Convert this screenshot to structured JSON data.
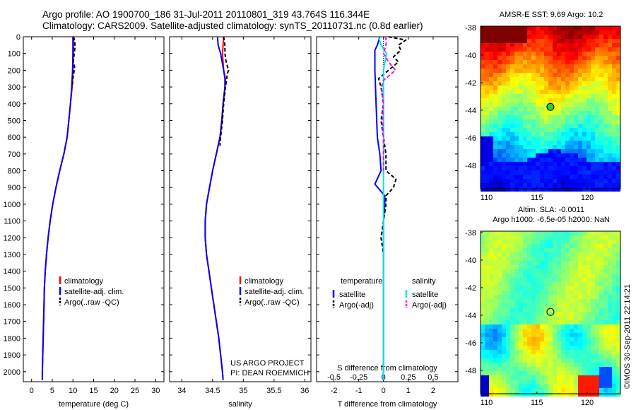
{
  "header": {
    "line1": "Argo profile: AO 1900700_186 31-Jul-2011 20110801_319 43.764S 116.344E",
    "line2": "Climatology: CARS2009. Satellite-adjusted climatology: synTS_20110731.nc (0.8d earlier)"
  },
  "credit": "©IMOS 30-Sep-2011 22:14:21",
  "project_note": {
    "line1": "US ARGO PROJECT",
    "line2": "PI: DEAN ROEMMICH"
  },
  "colors": {
    "climatology": "#ff0000",
    "satellite": "#0000ff",
    "argo": "#000000",
    "sal_satellite": "#00e0ff",
    "sal_argo": "#ff00ff"
  },
  "chart_data": [
    {
      "id": "temperature-profile",
      "type": "line",
      "xlabel": "temperature (deg C)",
      "ylabel": "",
      "xlim": [
        -2,
        32
      ],
      "ylim": [
        2060,
        0
      ],
      "xticks": [
        "0",
        "5",
        "10",
        "15",
        "20",
        "25",
        "30"
      ],
      "yticks": [
        "0",
        "100",
        "200",
        "300",
        "400",
        "500",
        "600",
        "700",
        "800",
        "900",
        "1000",
        "1100",
        "1200",
        "1300",
        "1400",
        "1500",
        "1600",
        "1700",
        "1800",
        "1900",
        "2000"
      ],
      "legend": [
        "climatology",
        "satellite-adj. clim.",
        "Argo(..raw -QC)"
      ],
      "series": [
        {
          "name": "climatology",
          "depth": [
            0,
            100,
            200,
            300,
            400,
            500,
            600,
            700,
            800,
            900,
            1000,
            1100,
            1200,
            1300,
            1400,
            1500,
            1600,
            1700,
            1800,
            1900,
            2000,
            2050
          ],
          "values": [
            10.2,
            10.1,
            10.0,
            9.8,
            9.4,
            9.0,
            8.6,
            7.8,
            6.8,
            5.9,
            5.1,
            4.5,
            4.0,
            3.6,
            3.3,
            3.1,
            3.0,
            2.9,
            2.8,
            2.7,
            2.6,
            2.6
          ]
        },
        {
          "name": "satellite-adj. clim.",
          "depth": [
            0,
            100,
            200,
            300,
            400,
            500,
            600,
            700,
            800,
            900,
            1000,
            1100,
            1200,
            1300,
            1400,
            1500,
            1600,
            1700,
            1800,
            1900,
            2000,
            2050
          ],
          "values": [
            10.0,
            10.0,
            9.9,
            9.7,
            9.4,
            9.0,
            8.6,
            7.8,
            6.8,
            5.9,
            5.1,
            4.5,
            4.0,
            3.6,
            3.3,
            3.1,
            3.0,
            2.9,
            2.8,
            2.7,
            2.6,
            2.6
          ]
        },
        {
          "name": "Argo(..raw -QC)",
          "depth": [
            0,
            20,
            60,
            100,
            150,
            180,
            200,
            250,
            300
          ],
          "values": [
            10.1,
            10.4,
            10.5,
            10.3,
            10.1,
            10.4,
            10.3,
            10.0,
            9.8
          ]
        }
      ]
    },
    {
      "id": "salinity-profile",
      "type": "line",
      "xlabel": "salinity",
      "xlim": [
        33.8,
        36.1
      ],
      "ylim": [
        2060,
        0
      ],
      "xticks": [
        "34",
        "34.5",
        "35",
        "35.5",
        "36"
      ],
      "legend": [
        "climatology",
        "satellite-adj. clim.",
        "Argo(..raw -QC)"
      ],
      "series": [
        {
          "name": "climatology",
          "depth": [
            0,
            100,
            200,
            250,
            300,
            400,
            500,
            600,
            700,
            800,
            900,
            1000,
            1100,
            1200,
            1300,
            1400,
            1500,
            1600,
            1700,
            1800,
            1900,
            2000,
            2050
          ],
          "values": [
            34.68,
            34.66,
            34.68,
            34.71,
            34.7,
            34.67,
            34.65,
            34.62,
            34.56,
            34.5,
            34.45,
            34.4,
            34.38,
            34.38,
            34.4,
            34.44,
            34.48,
            34.52,
            34.56,
            34.6,
            34.63,
            34.66,
            34.67
          ]
        },
        {
          "name": "satellite-adj. clim.",
          "depth": [
            0,
            50,
            100,
            200,
            250,
            300,
            400,
            500,
            600,
            700,
            800,
            900,
            1000,
            1100,
            1200,
            1300,
            1400,
            1500,
            1600,
            1700,
            1800,
            1900,
            2000,
            2050
          ],
          "values": [
            34.58,
            34.59,
            34.63,
            34.68,
            34.7,
            34.7,
            34.67,
            34.65,
            34.62,
            34.56,
            34.5,
            34.45,
            34.4,
            34.38,
            34.38,
            34.4,
            34.44,
            34.48,
            34.52,
            34.56,
            34.6,
            34.63,
            34.66,
            34.67
          ]
        },
        {
          "name": "Argo(..raw -QC)",
          "depth": [
            0,
            50,
            100,
            150,
            200,
            220,
            250,
            300,
            400,
            500,
            600,
            650
          ],
          "values": [
            34.68,
            34.7,
            34.7,
            34.72,
            34.76,
            34.74,
            34.73,
            34.71,
            34.68,
            34.66,
            34.63,
            34.62
          ]
        }
      ]
    },
    {
      "id": "difference-profile",
      "type": "line",
      "xlabel": "T difference from climatology",
      "xlabel2": "S difference from climatology",
      "xlim": [
        -2.7,
        3.0
      ],
      "ylim": [
        2060,
        0
      ],
      "xticks": [
        "-2",
        "-1",
        "0",
        "1",
        "2"
      ],
      "xticks2": [
        "-0.5",
        "-0.25",
        "0",
        "0.25",
        "0.5"
      ],
      "legend_groups": [
        "temperature",
        "salinity"
      ],
      "legend": [
        "satellite",
        "Argo(-adj)",
        "satellite",
        "Argo(-adj)"
      ],
      "series": [
        {
          "name": "temperature satellite",
          "depth": [
            0,
            50,
            80,
            200,
            400,
            600,
            700,
            800,
            880,
            950,
            1000,
            1100,
            1200,
            1400,
            1600,
            1800,
            2000,
            2050
          ],
          "values": [
            -0.15,
            -0.25,
            -0.35,
            -0.35,
            -0.3,
            -0.25,
            -0.15,
            -0.1,
            -0.35,
            0.05,
            0.05,
            0.0,
            0.0,
            0.0,
            0.0,
            0.0,
            0.0,
            0.0
          ]
        },
        {
          "name": "temperature Argo(-adj)",
          "depth": [
            0,
            20,
            50,
            80,
            120,
            150,
            200,
            250,
            300,
            400,
            500,
            600,
            700,
            800,
            850,
            900,
            950,
            1000,
            1100,
            1200,
            1300
          ],
          "values": [
            0.2,
            0.9,
            0.6,
            0.7,
            0.4,
            0.6,
            0.2,
            -0.2,
            -0.1,
            0.0,
            -0.1,
            0.0,
            0.1,
            0.1,
            0.5,
            0.4,
            0.1,
            0.1,
            0.0,
            -0.1,
            0.0
          ]
        },
        {
          "name": "salinity satellite",
          "depth": [
            0,
            50,
            100,
            200,
            400,
            600,
            800,
            1000,
            1200,
            1400,
            1600,
            1800,
            2000,
            2050
          ],
          "values": [
            -0.05,
            -0.025,
            0.03,
            0.0,
            0.0,
            0.0,
            0.0,
            0.0,
            0.0,
            0.0,
            0.0,
            0.0,
            0.0,
            0.0
          ]
        },
        {
          "name": "salinity Argo(-adj)",
          "depth": [
            0,
            30,
            60,
            100,
            150,
            200,
            230,
            260,
            300,
            400,
            500,
            600,
            700,
            800
          ],
          "values": [
            0.02,
            0.03,
            0.02,
            0.0,
            0.05,
            0.12,
            0.06,
            0.0,
            -0.02,
            0.0,
            -0.01,
            0.0,
            0.0,
            0.0
          ]
        }
      ]
    },
    {
      "id": "sst-map",
      "type": "heatmap",
      "title": "AMSR-E SST: 9.69 Argo: 10.2",
      "xticks": [
        "110",
        "115",
        "120"
      ],
      "yticks": [
        "-38",
        "-40",
        "-42",
        "-44",
        "-46",
        "-48"
      ],
      "xlim": [
        109.4,
        123.3
      ],
      "ylim": [
        -49.7,
        -37.9
      ],
      "argo_position": {
        "lon": 116.344,
        "lat": -43.764
      }
    },
    {
      "id": "sla-map",
      "type": "heatmap",
      "title": "Altim. SLA: -0.0011",
      "subtitle": "Argo h1000: -6.5e-05 h2000: NaN",
      "xticks": [
        "110",
        "115",
        "120"
      ],
      "yticks": [
        "-38",
        "-40",
        "-42",
        "-44",
        "-46",
        "-48"
      ],
      "xlim": [
        109.4,
        123.3
      ],
      "ylim": [
        -49.7,
        -37.9
      ],
      "argo_position": {
        "lon": 116.344,
        "lat": -43.764
      }
    }
  ]
}
